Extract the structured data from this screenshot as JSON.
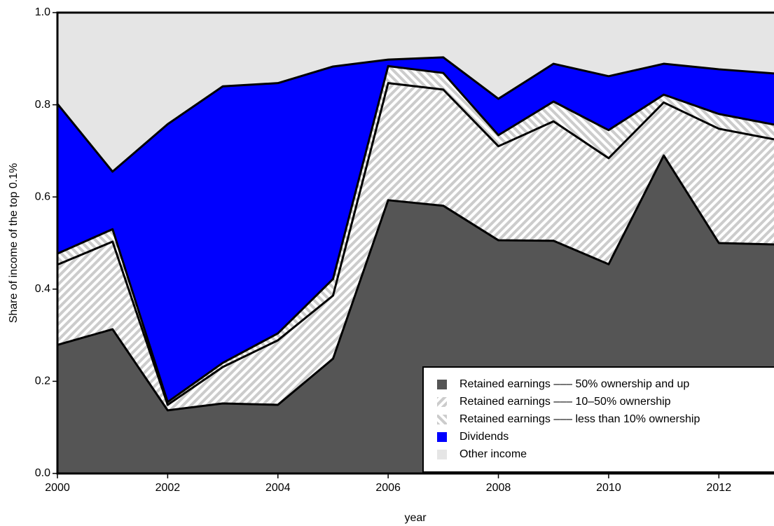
{
  "chart_data": {
    "type": "stacked_area",
    "x_label": "year",
    "y_label": "Share of income of the top 0.1%",
    "x": [
      2000,
      2001,
      2002,
      2003,
      2004,
      2005,
      2006,
      2007,
      2008,
      2009,
      2010,
      2011,
      2012,
      2013
    ],
    "xlim": [
      2000,
      2013
    ],
    "xticks": [
      2000,
      2002,
      2004,
      2006,
      2008,
      2010,
      2012
    ],
    "ylim": [
      0,
      1
    ],
    "yticks": [
      {
        "value": 0,
        "label": "0.0"
      },
      0.2,
      0.4,
      0.6,
      0.8,
      {
        "value": 1,
        "label": "1.0"
      }
    ],
    "legend": "lower right",
    "series": [
      {
        "name": "Retained earnings ––– 50% ownership and up",
        "color": "#555555",
        "hatch": "none",
        "values": [
          0.279,
          0.313,
          0.137,
          0.152,
          0.149,
          0.249,
          0.593,
          0.581,
          0.506,
          0.505,
          0.454,
          0.69,
          0.5,
          0.497
        ]
      },
      {
        "name": "Retained earnings ––– 10–50% ownership",
        "color": "#cccccc",
        "hatch": "down",
        "values": [
          0.174,
          0.19,
          0.012,
          0.079,
          0.14,
          0.137,
          0.254,
          0.252,
          0.204,
          0.259,
          0.23,
          0.115,
          0.248,
          0.228
        ]
      },
      {
        "name": "Retained earnings ––– less than 10% ownership",
        "color": "#cccccc",
        "hatch": "up",
        "values": [
          0.024,
          0.027,
          0.006,
          0.009,
          0.015,
          0.036,
          0.037,
          0.036,
          0.024,
          0.043,
          0.061,
          0.017,
          0.032,
          0.032
        ]
      },
      {
        "name": "Dividends",
        "color": "#0000ff",
        "hatch": "none",
        "values": [
          0.325,
          0.125,
          0.603,
          0.6,
          0.543,
          0.461,
          0.014,
          0.034,
          0.079,
          0.082,
          0.117,
          0.067,
          0.097,
          0.111
        ]
      },
      {
        "name": "Other income",
        "color": "#e5e5e5",
        "hatch": "none",
        "values": [
          0.198,
          0.345,
          0.242,
          0.16,
          0.153,
          0.117,
          0.102,
          0.097,
          0.187,
          0.111,
          0.138,
          0.111,
          0.123,
          0.132
        ]
      }
    ]
  }
}
